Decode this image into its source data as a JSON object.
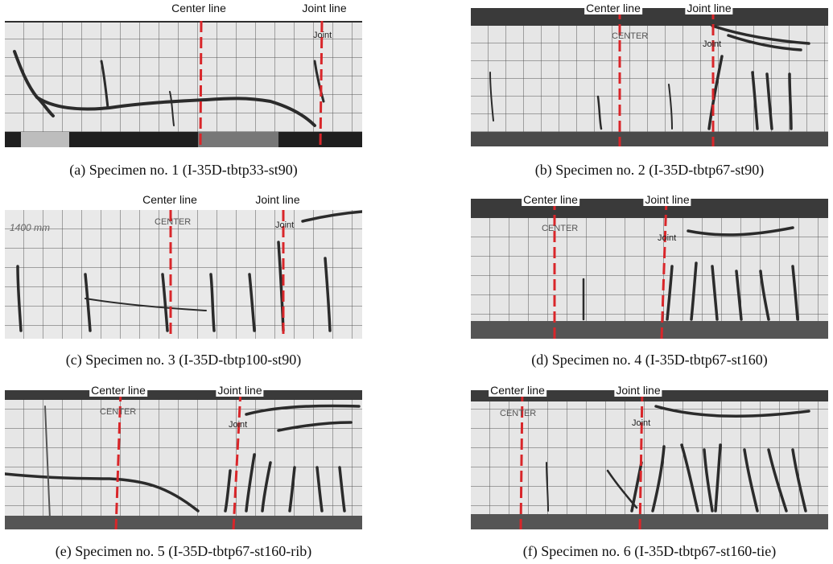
{
  "labels": {
    "center_line": "Center line",
    "joint_line": "Joint line",
    "center_mark": "CENTER",
    "joint_mark": "Joint",
    "scale_mark": "1400 mm"
  },
  "panels": [
    {
      "caption": "(a) Specimen no. 1 (I-35D-tbtp33-st90)"
    },
    {
      "caption": "(b) Specimen no. 2 (I-35D-tbtp67-st90)"
    },
    {
      "caption": "(c) Specimen no. 3 (I-35D-tbtp100-st90)"
    },
    {
      "caption": "(d) Specimen no. 4 (I-35D-tbtp67-st160)"
    },
    {
      "caption": "(e) Specimen no. 5 (I-35D-tbtp67-st160-rib)"
    },
    {
      "caption": "(f) Specimen no. 6 (I-35D-tbtp67-st160-tie)"
    }
  ],
  "colors": {
    "reference_line": "#d9262a",
    "crack": "#2e2e2e",
    "specimen_face": "#e6e6e6",
    "grid": "#555555",
    "background_dark": "#3a3a3a"
  }
}
